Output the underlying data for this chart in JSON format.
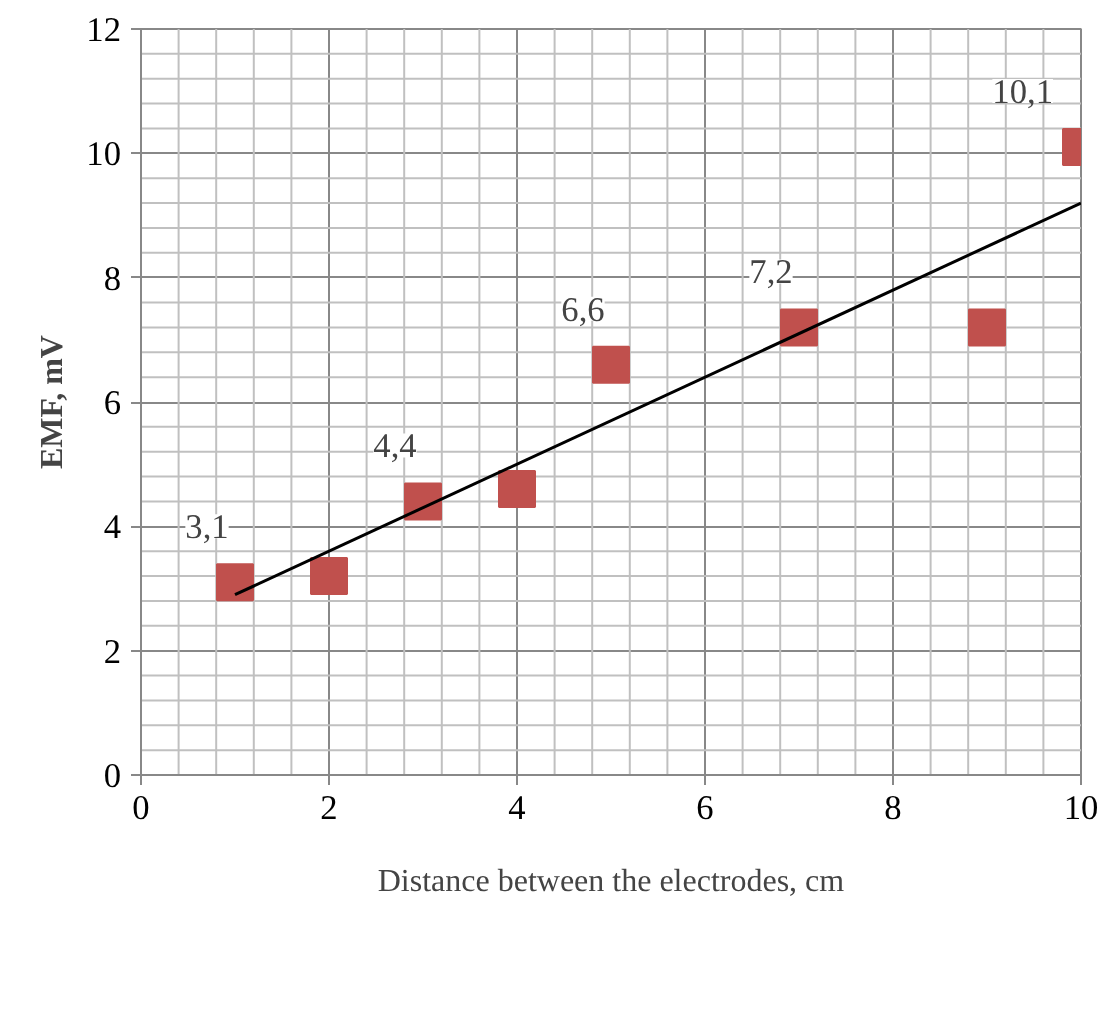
{
  "chart_data": {
    "type": "scatter",
    "xlabel": "Distance between the electrodes, cm",
    "ylabel": "EMF, mV",
    "xlim": [
      0,
      10
    ],
    "ylim": [
      0,
      12
    ],
    "xticks": [
      0,
      2,
      4,
      6,
      8,
      10
    ],
    "yticks": [
      0,
      2,
      4,
      6,
      8,
      10,
      12
    ],
    "grid": true,
    "marker": "square",
    "series": [
      {
        "color": "#c0504d",
        "x": [
          1,
          2,
          3,
          4,
          5,
          7,
          9,
          10
        ],
        "values": [
          3.1,
          3.2,
          4.4,
          4.6,
          6.6,
          7.2,
          7.2,
          10.1
        ],
        "value_labels": [
          "3,1",
          null,
          "4,4",
          null,
          "6,6",
          "7,2",
          null,
          "10,1"
        ]
      },
      {
        "type": "line",
        "color": "#000000",
        "x": [
          1,
          10
        ],
        "values": [
          2.9,
          9.2
        ],
        "line_style": "solid",
        "marker": "none"
      }
    ]
  }
}
